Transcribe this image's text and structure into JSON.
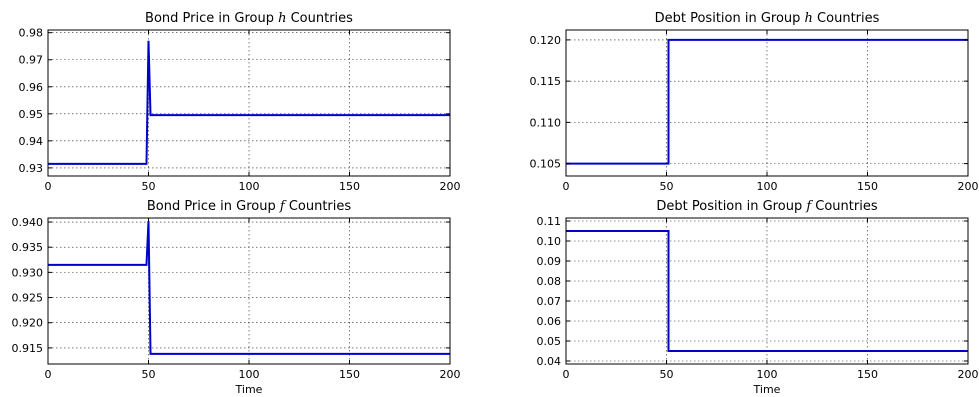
{
  "colors": {
    "series": "#0000cc"
  },
  "chart_data": [
    {
      "type": "line",
      "title": "Bond Price in Group h Countries",
      "title_parts": [
        "Bond Price in Group ",
        "h",
        " Countries"
      ],
      "xlabel": "",
      "ylabel": "",
      "xlim": [
        0,
        200
      ],
      "ylim": [
        0.927,
        0.981
      ],
      "xticks": [
        0,
        50,
        100,
        150,
        200
      ],
      "yticks": [
        0.93,
        0.94,
        0.95,
        0.96,
        0.97,
        0.98
      ],
      "ytick_labels": [
        "0.93",
        "0.94",
        "0.95",
        "0.96",
        "0.97",
        "0.98"
      ],
      "grid": true,
      "series": [
        {
          "x": [
            0,
            49,
            50,
            51,
            200
          ],
          "y": [
            0.9315,
            0.9315,
            0.977,
            0.9495,
            0.9495
          ]
        }
      ]
    },
    {
      "type": "line",
      "title": "Debt Position in Group h Countries",
      "title_parts": [
        "Debt Position in Group ",
        "h",
        " Countries"
      ],
      "xlabel": "",
      "ylabel": "",
      "xlim": [
        0,
        200
      ],
      "ylim": [
        0.1035,
        0.1212
      ],
      "xticks": [
        0,
        50,
        100,
        150,
        200
      ],
      "yticks": [
        0.105,
        0.11,
        0.115,
        0.12
      ],
      "ytick_labels": [
        "0.105",
        "0.110",
        "0.115",
        "0.120"
      ],
      "grid": true,
      "series": [
        {
          "x": [
            0,
            51,
            51,
            200
          ],
          "y": [
            0.105,
            0.105,
            0.12,
            0.12
          ]
        }
      ]
    },
    {
      "type": "line",
      "title": "Bond Price in Group f Countries",
      "title_parts": [
        "Bond Price in Group ",
        "f",
        " Countries"
      ],
      "xlabel": "Time",
      "ylabel": "",
      "xlim": [
        0,
        200
      ],
      "ylim": [
        0.9118,
        0.9408
      ],
      "xticks": [
        0,
        50,
        100,
        150,
        200
      ],
      "yticks": [
        0.915,
        0.92,
        0.925,
        0.93,
        0.935,
        0.94
      ],
      "ytick_labels": [
        "0.915",
        "0.920",
        "0.925",
        "0.930",
        "0.935",
        "0.940"
      ],
      "grid": true,
      "series": [
        {
          "x": [
            0,
            49,
            50,
            51,
            200
          ],
          "y": [
            0.9315,
            0.9315,
            0.9402,
            0.9138,
            0.9138
          ]
        }
      ]
    },
    {
      "type": "line",
      "title": "Debt Position in Group f Countries",
      "title_parts": [
        "Debt Position in Group ",
        "f",
        " Countries"
      ],
      "xlabel": "Time",
      "ylabel": "",
      "xlim": [
        0,
        200
      ],
      "ylim": [
        0.0385,
        0.1115
      ],
      "xticks": [
        0,
        50,
        100,
        150,
        200
      ],
      "yticks": [
        0.04,
        0.05,
        0.06,
        0.07,
        0.08,
        0.09,
        0.1,
        0.11
      ],
      "ytick_labels": [
        "0.04",
        "0.05",
        "0.06",
        "0.07",
        "0.08",
        "0.09",
        "0.10",
        "0.11"
      ],
      "grid": true,
      "series": [
        {
          "x": [
            0,
            51,
            51,
            200
          ],
          "y": [
            0.105,
            0.105,
            0.045,
            0.045
          ]
        }
      ]
    }
  ]
}
